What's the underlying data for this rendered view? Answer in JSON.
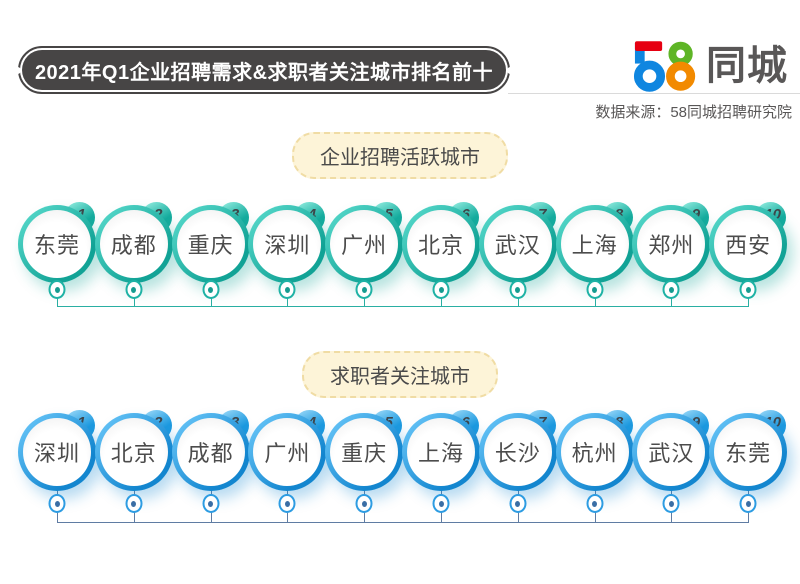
{
  "header": {
    "title": "2021年Q1企业招聘需求&求职者关注城市排名前十",
    "source": "数据来源：58同城招聘研究院",
    "brand": {
      "digits": "58",
      "suffix": "同城"
    }
  },
  "sections": [
    {
      "label": "企业招聘活跃城市",
      "theme": "teal",
      "cities": [
        {
          "rank": "1",
          "name": "东莞"
        },
        {
          "rank": "2",
          "name": "成都"
        },
        {
          "rank": "3",
          "name": "重庆"
        },
        {
          "rank": "4",
          "name": "深圳"
        },
        {
          "rank": "5",
          "name": "广州"
        },
        {
          "rank": "6",
          "name": "北京"
        },
        {
          "rank": "7",
          "name": "武汉"
        },
        {
          "rank": "8",
          "name": "上海"
        },
        {
          "rank": "9",
          "name": "郑州"
        },
        {
          "rank": "10",
          "name": "西安"
        }
      ]
    },
    {
      "label": "求职者关注城市",
      "theme": "blue",
      "cities": [
        {
          "rank": "1",
          "name": "深圳"
        },
        {
          "rank": "2",
          "name": "北京"
        },
        {
          "rank": "3",
          "name": "成都"
        },
        {
          "rank": "4",
          "name": "广州"
        },
        {
          "rank": "5",
          "name": "重庆"
        },
        {
          "rank": "6",
          "name": "上海"
        },
        {
          "rank": "7",
          "name": "长沙"
        },
        {
          "rank": "8",
          "name": "杭州"
        },
        {
          "rank": "9",
          "name": "武汉"
        },
        {
          "rank": "10",
          "name": "东莞"
        }
      ]
    }
  ],
  "chart_data": [
    {
      "type": "table",
      "title": "企业招聘活跃城市",
      "categories": [
        "1",
        "2",
        "3",
        "4",
        "5",
        "6",
        "7",
        "8",
        "9",
        "10"
      ],
      "values": [
        "东莞",
        "成都",
        "重庆",
        "深圳",
        "广州",
        "北京",
        "武汉",
        "上海",
        "郑州",
        "西安"
      ]
    },
    {
      "type": "table",
      "title": "求职者关注城市",
      "categories": [
        "1",
        "2",
        "3",
        "4",
        "5",
        "6",
        "7",
        "8",
        "9",
        "10"
      ],
      "values": [
        "深圳",
        "北京",
        "成都",
        "广州",
        "重庆",
        "上海",
        "长沙",
        "杭州",
        "武汉",
        "东莞"
      ]
    }
  ],
  "colors": {
    "banner_bg": "#474545",
    "teal": "#1fb2a5",
    "blue": "#2d9ce2",
    "pill_bg": "#fdf4d8",
    "pill_border": "#f0dca4",
    "logo_red": "#e60012",
    "logo_blue": "#0f86e0",
    "logo_green": "#5eb526",
    "logo_orange": "#f28a00"
  }
}
